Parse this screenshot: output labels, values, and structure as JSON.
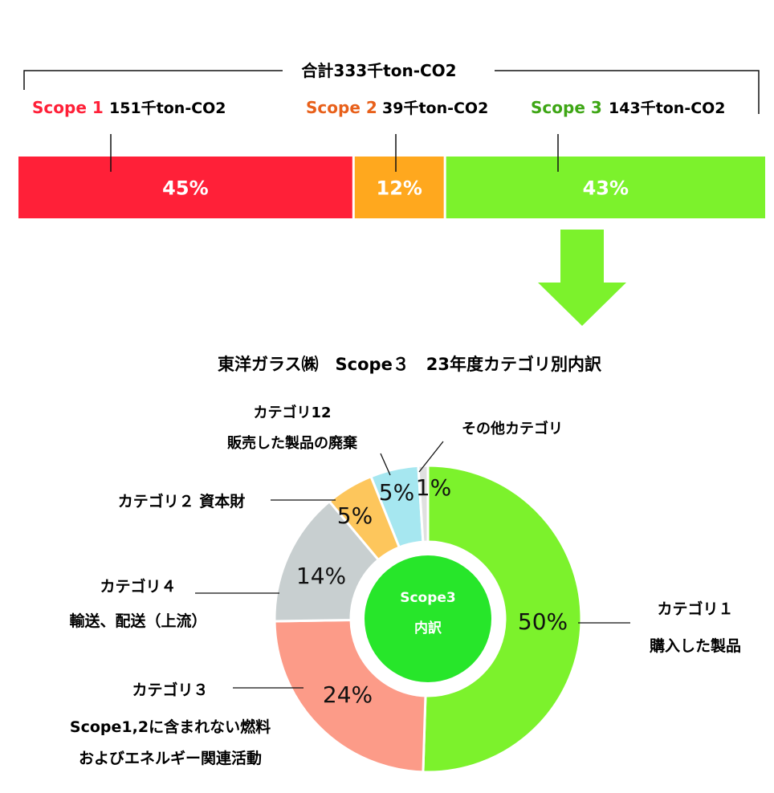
{
  "top": {
    "total_label": "合計333千ton-CO2",
    "scopes": [
      {
        "label": "Scope 1",
        "amount": "151千ton-CO2",
        "percent": 45,
        "percent_label": "45%",
        "color": "#ff2038",
        "label_color": "#ff2038"
      },
      {
        "label": "Scope 2",
        "amount": "39千ton-CO2",
        "percent": 12,
        "percent_label": "12%",
        "color": "#ffa81e",
        "label_color": "#e8601a"
      },
      {
        "label": "Scope 3",
        "amount": "143千ton-CO2",
        "percent": 43,
        "percent_label": "43%",
        "color": "#7cf22c",
        "label_color": "#3ea615"
      }
    ],
    "arrow_color": "#7cf22c"
  },
  "chart_title": "東洋ガラス㈱　Scope３　23年度カテゴリ別内訳",
  "chart_data": {
    "type": "pie",
    "title": "東洋ガラス㈱　Scope３　23年度カテゴリ別内訳",
    "center_label": [
      "Scope3",
      "内訳"
    ],
    "center_color": "#27e62a",
    "slices": [
      {
        "value": 50,
        "label": "50%",
        "color": "#7cf22c",
        "name": [
          "カテゴリ１",
          "購入した製品"
        ]
      },
      {
        "value": 24,
        "label": "24%",
        "color": "#fc9b88",
        "name": [
          "カテゴリ３",
          "Scope1,2に含まれない燃料",
          "およびエネルギー関連活動"
        ]
      },
      {
        "value": 14,
        "label": "14%",
        "color": "#c8cfd0",
        "name": [
          "カテゴリ４",
          "輸送、配送（上流）"
        ]
      },
      {
        "value": 5,
        "label": "5%",
        "color": "#fdc65c",
        "name": [
          "カテゴリ２ 資本財"
        ]
      },
      {
        "value": 5,
        "label": "5%",
        "color": "#a6e7f0",
        "name": [
          "カテゴリ12",
          "販売した製品の廃棄"
        ]
      },
      {
        "value": 1,
        "label": "1%",
        "color": "#e0e0e0",
        "name": [
          "その他カテゴリ"
        ]
      }
    ]
  }
}
